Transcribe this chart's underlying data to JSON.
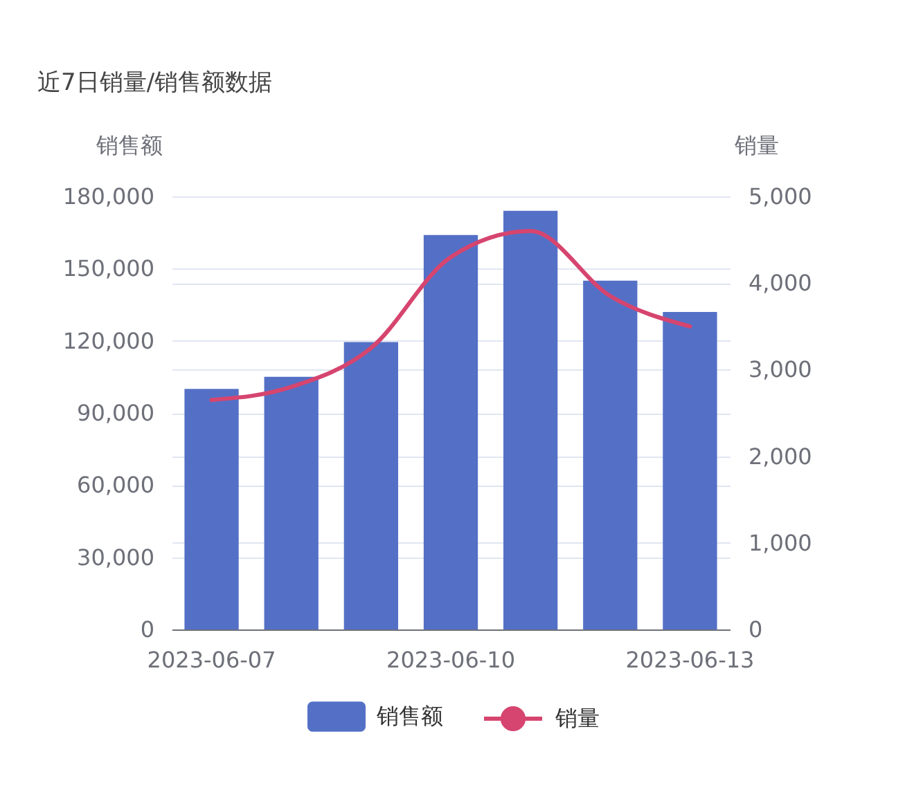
{
  "chart_data": {
    "type": "bar",
    "title": "近7日销量/销售额数据",
    "ylabel": "销售额",
    "y2label": "销量",
    "categories": [
      "2023-06-07",
      null,
      null,
      "2023-06-10",
      null,
      null,
      "2023-06-13"
    ],
    "series": [
      {
        "name": "销售额",
        "color": "#5470c6",
        "values": [
          100000,
          105000,
          119500,
          164000,
          174000,
          145000,
          132000
        ]
      },
      {
        "name": "销量",
        "type": "line",
        "axis": "y2",
        "color": "#d6456f",
        "values": [
          2650,
          2800,
          3250,
          4300,
          4600,
          3850,
          3500
        ]
      }
    ],
    "ylim": [
      0,
      180000
    ],
    "yticks": [
      0,
      {
        "value": 30000,
        "label": "30,000"
      },
      {
        "value": 60000,
        "label": "60,000"
      },
      {
        "value": 90000,
        "label": "90,000"
      },
      {
        "value": 120000,
        "label": "120,000"
      },
      {
        "value": 150000,
        "label": "150,000"
      },
      {
        "value": 180000,
        "label": "180,000"
      }
    ],
    "y2lim": [
      0,
      5000
    ],
    "y2ticks": [
      0,
      {
        "value": 1000,
        "label": "1,000"
      },
      {
        "value": 2000,
        "label": "2,000"
      },
      {
        "value": 3000,
        "label": "3,000"
      },
      {
        "value": 4000,
        "label": "4,000"
      },
      {
        "value": 5000,
        "label": "5,000"
      }
    ],
    "grid": "y",
    "legend": "bottom"
  }
}
